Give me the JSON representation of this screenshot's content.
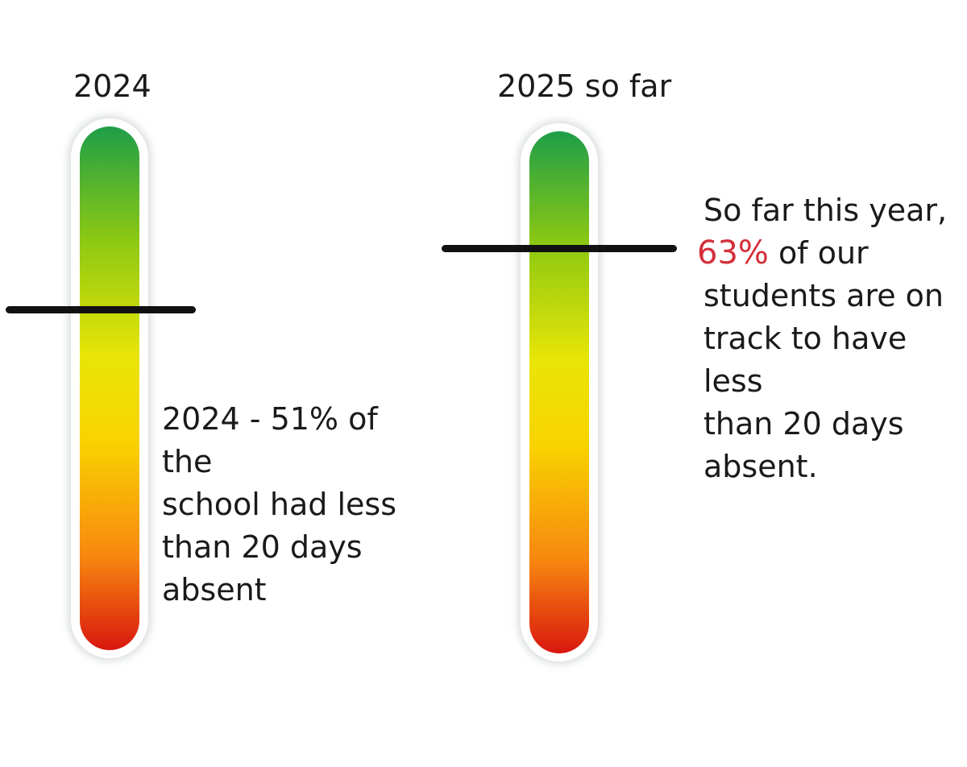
{
  "chart_data": {
    "type": "gauge",
    "scale": [
      0,
      100
    ],
    "unit": "%",
    "color_scale": [
      "#d9170f",
      "#f7880f",
      "#f9d300",
      "#e9e507",
      "#8ec912",
      "#1e9e48"
    ],
    "gauges": [
      {
        "title": "2024",
        "value": 51,
        "annotation": {
          "lines": [
            "2024 - 51% of the",
            "school had less",
            "than 20 days",
            "absent"
          ]
        }
      },
      {
        "title": "2025 so far",
        "value": 63,
        "annotation": {
          "lines": [
            {
              "text": "So far this year,"
            },
            {
              "highlight": "63%",
              "highlight_color": "#d42f3a",
              "text": " of our"
            },
            {
              "text": "students are on"
            },
            {
              "text": "track to have less"
            },
            {
              "text": "than 20 days"
            },
            {
              "text": "absent."
            }
          ]
        }
      }
    ]
  }
}
